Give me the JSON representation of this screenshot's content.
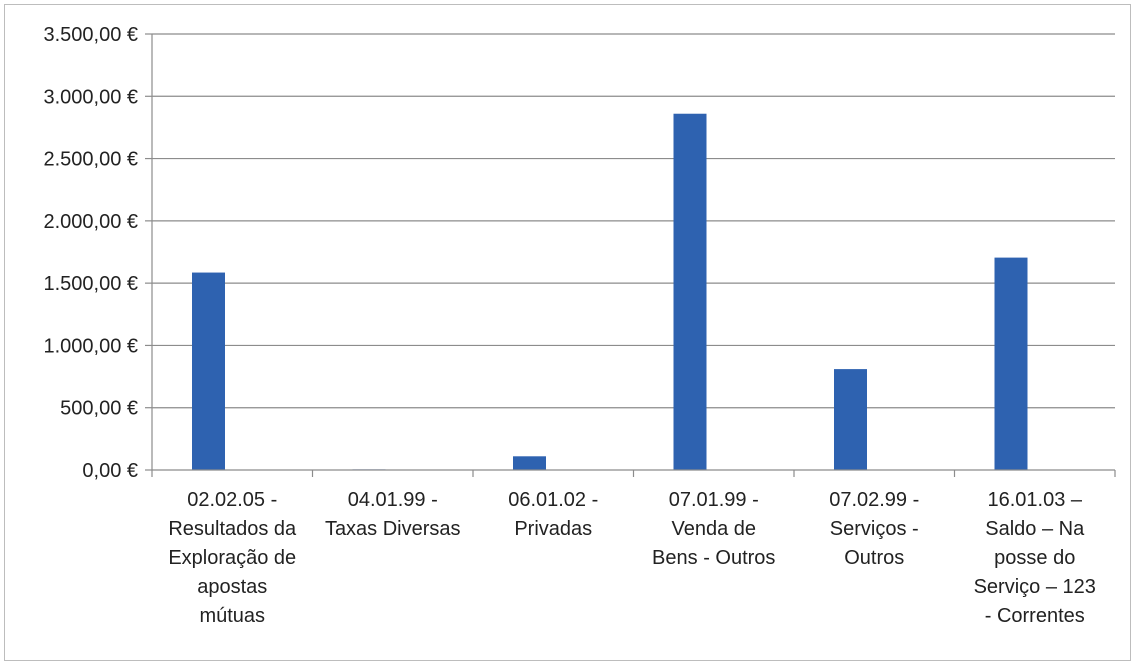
{
  "chart_data": {
    "type": "bar",
    "title": "",
    "xlabel": "",
    "ylabel": "",
    "ylim": [
      0,
      3500
    ],
    "yticks": [
      "0,00 €",
      "500,00 €",
      "1.000,00 €",
      "1.500,00 €",
      "2.000,00 €",
      "2.500,00 €",
      "3.000,00 €",
      "3.500,00 €"
    ],
    "categories": [
      [
        "02.02.05 -",
        "Resultados da",
        "Exploração de",
        "apostas",
        "mútuas"
      ],
      [
        "04.01.99 -",
        "Taxas Diversas"
      ],
      [
        "06.01.02 -",
        "Privadas"
      ],
      [
        "07.01.99 -",
        "Venda de",
        "Bens - Outros"
      ],
      [
        "07.02.99 -",
        "Serviços -",
        "Outros"
      ],
      [
        "16.01.03 –",
        "Saldo – Na",
        "posse do",
        "Serviço – 123",
        "- Correntes"
      ]
    ],
    "values": [
      1585,
      5,
      110,
      2860,
      810,
      1705
    ],
    "bar_color": "#2e62b0",
    "grid": true,
    "legend": "none"
  }
}
